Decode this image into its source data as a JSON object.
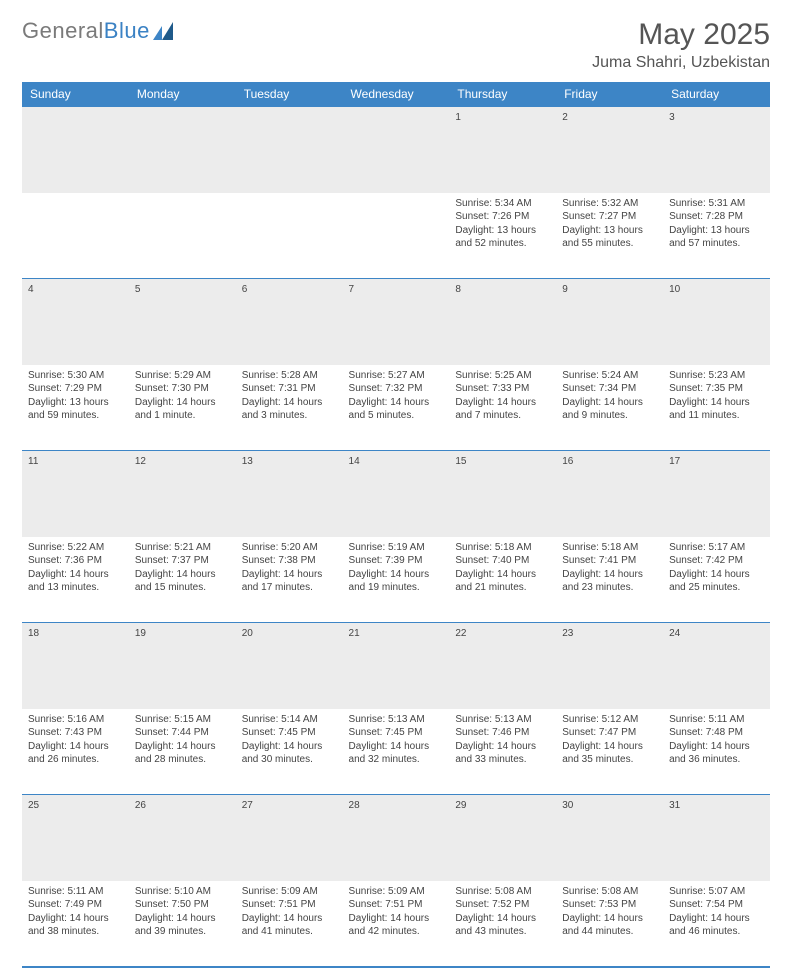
{
  "logo": {
    "text1": "General",
    "text2": "Blue"
  },
  "header": {
    "month": "May 2025",
    "location": "Juma Shahri, Uzbekistan"
  },
  "colors": {
    "header_bg": "#3d85c6",
    "header_text": "#ffffff",
    "daynum_bg": "#ececec",
    "border": "#3d85c6",
    "body_text": "#444444"
  },
  "weekdays": [
    "Sunday",
    "Monday",
    "Tuesday",
    "Wednesday",
    "Thursday",
    "Friday",
    "Saturday"
  ],
  "weeks": [
    [
      null,
      null,
      null,
      null,
      {
        "n": "1",
        "sr": "Sunrise: 5:34 AM",
        "ss": "Sunset: 7:26 PM",
        "dl": "Daylight: 13 hours and 52 minutes."
      },
      {
        "n": "2",
        "sr": "Sunrise: 5:32 AM",
        "ss": "Sunset: 7:27 PM",
        "dl": "Daylight: 13 hours and 55 minutes."
      },
      {
        "n": "3",
        "sr": "Sunrise: 5:31 AM",
        "ss": "Sunset: 7:28 PM",
        "dl": "Daylight: 13 hours and 57 minutes."
      }
    ],
    [
      {
        "n": "4",
        "sr": "Sunrise: 5:30 AM",
        "ss": "Sunset: 7:29 PM",
        "dl": "Daylight: 13 hours and 59 minutes."
      },
      {
        "n": "5",
        "sr": "Sunrise: 5:29 AM",
        "ss": "Sunset: 7:30 PM",
        "dl": "Daylight: 14 hours and 1 minute."
      },
      {
        "n": "6",
        "sr": "Sunrise: 5:28 AM",
        "ss": "Sunset: 7:31 PM",
        "dl": "Daylight: 14 hours and 3 minutes."
      },
      {
        "n": "7",
        "sr": "Sunrise: 5:27 AM",
        "ss": "Sunset: 7:32 PM",
        "dl": "Daylight: 14 hours and 5 minutes."
      },
      {
        "n": "8",
        "sr": "Sunrise: 5:25 AM",
        "ss": "Sunset: 7:33 PM",
        "dl": "Daylight: 14 hours and 7 minutes."
      },
      {
        "n": "9",
        "sr": "Sunrise: 5:24 AM",
        "ss": "Sunset: 7:34 PM",
        "dl": "Daylight: 14 hours and 9 minutes."
      },
      {
        "n": "10",
        "sr": "Sunrise: 5:23 AM",
        "ss": "Sunset: 7:35 PM",
        "dl": "Daylight: 14 hours and 11 minutes."
      }
    ],
    [
      {
        "n": "11",
        "sr": "Sunrise: 5:22 AM",
        "ss": "Sunset: 7:36 PM",
        "dl": "Daylight: 14 hours and 13 minutes."
      },
      {
        "n": "12",
        "sr": "Sunrise: 5:21 AM",
        "ss": "Sunset: 7:37 PM",
        "dl": "Daylight: 14 hours and 15 minutes."
      },
      {
        "n": "13",
        "sr": "Sunrise: 5:20 AM",
        "ss": "Sunset: 7:38 PM",
        "dl": "Daylight: 14 hours and 17 minutes."
      },
      {
        "n": "14",
        "sr": "Sunrise: 5:19 AM",
        "ss": "Sunset: 7:39 PM",
        "dl": "Daylight: 14 hours and 19 minutes."
      },
      {
        "n": "15",
        "sr": "Sunrise: 5:18 AM",
        "ss": "Sunset: 7:40 PM",
        "dl": "Daylight: 14 hours and 21 minutes."
      },
      {
        "n": "16",
        "sr": "Sunrise: 5:18 AM",
        "ss": "Sunset: 7:41 PM",
        "dl": "Daylight: 14 hours and 23 minutes."
      },
      {
        "n": "17",
        "sr": "Sunrise: 5:17 AM",
        "ss": "Sunset: 7:42 PM",
        "dl": "Daylight: 14 hours and 25 minutes."
      }
    ],
    [
      {
        "n": "18",
        "sr": "Sunrise: 5:16 AM",
        "ss": "Sunset: 7:43 PM",
        "dl": "Daylight: 14 hours and 26 minutes."
      },
      {
        "n": "19",
        "sr": "Sunrise: 5:15 AM",
        "ss": "Sunset: 7:44 PM",
        "dl": "Daylight: 14 hours and 28 minutes."
      },
      {
        "n": "20",
        "sr": "Sunrise: 5:14 AM",
        "ss": "Sunset: 7:45 PM",
        "dl": "Daylight: 14 hours and 30 minutes."
      },
      {
        "n": "21",
        "sr": "Sunrise: 5:13 AM",
        "ss": "Sunset: 7:45 PM",
        "dl": "Daylight: 14 hours and 32 minutes."
      },
      {
        "n": "22",
        "sr": "Sunrise: 5:13 AM",
        "ss": "Sunset: 7:46 PM",
        "dl": "Daylight: 14 hours and 33 minutes."
      },
      {
        "n": "23",
        "sr": "Sunrise: 5:12 AM",
        "ss": "Sunset: 7:47 PM",
        "dl": "Daylight: 14 hours and 35 minutes."
      },
      {
        "n": "24",
        "sr": "Sunrise: 5:11 AM",
        "ss": "Sunset: 7:48 PM",
        "dl": "Daylight: 14 hours and 36 minutes."
      }
    ],
    [
      {
        "n": "25",
        "sr": "Sunrise: 5:11 AM",
        "ss": "Sunset: 7:49 PM",
        "dl": "Daylight: 14 hours and 38 minutes."
      },
      {
        "n": "26",
        "sr": "Sunrise: 5:10 AM",
        "ss": "Sunset: 7:50 PM",
        "dl": "Daylight: 14 hours and 39 minutes."
      },
      {
        "n": "27",
        "sr": "Sunrise: 5:09 AM",
        "ss": "Sunset: 7:51 PM",
        "dl": "Daylight: 14 hours and 41 minutes."
      },
      {
        "n": "28",
        "sr": "Sunrise: 5:09 AM",
        "ss": "Sunset: 7:51 PM",
        "dl": "Daylight: 14 hours and 42 minutes."
      },
      {
        "n": "29",
        "sr": "Sunrise: 5:08 AM",
        "ss": "Sunset: 7:52 PM",
        "dl": "Daylight: 14 hours and 43 minutes."
      },
      {
        "n": "30",
        "sr": "Sunrise: 5:08 AM",
        "ss": "Sunset: 7:53 PM",
        "dl": "Daylight: 14 hours and 44 minutes."
      },
      {
        "n": "31",
        "sr": "Sunrise: 5:07 AM",
        "ss": "Sunset: 7:54 PM",
        "dl": "Daylight: 14 hours and 46 minutes."
      }
    ]
  ]
}
